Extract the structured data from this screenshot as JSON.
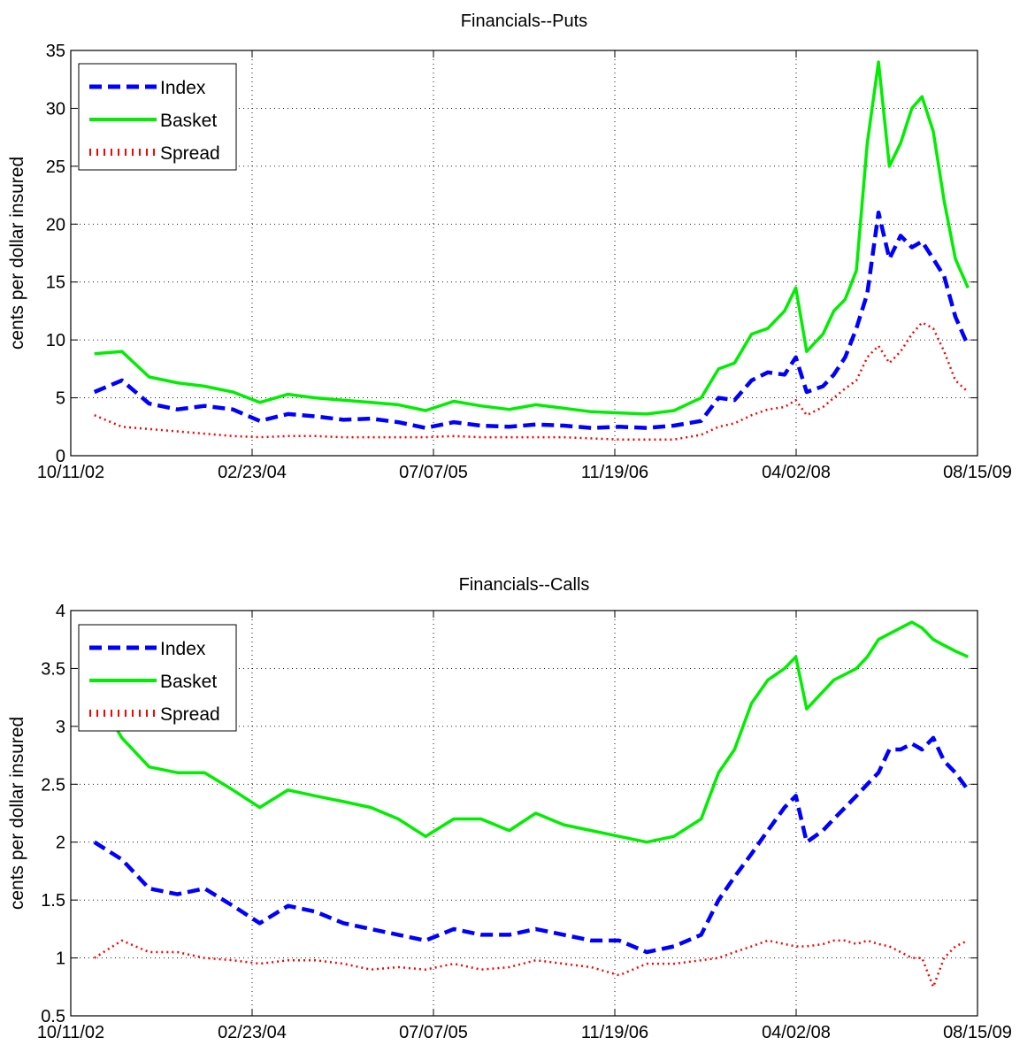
{
  "chart_data": [
    {
      "type": "line",
      "title": "Financials--Puts",
      "xlabel": "",
      "ylabel": "cents per dollar insured",
      "xlim": [
        "10/11/02",
        "08/15/09"
      ],
      "ylim": [
        0,
        35
      ],
      "x_ticks": [
        "10/11/02",
        "02/23/04",
        "07/07/05",
        "11/19/06",
        "04/02/08",
        "08/15/09"
      ],
      "y_ticks": [
        "0",
        "5",
        "10",
        "15",
        "20",
        "25",
        "30",
        "35"
      ],
      "grid": true,
      "legend_position": "top-left",
      "x": [
        "12/15/02",
        "03/01/03",
        "05/15/03",
        "08/01/03",
        "10/15/03",
        "01/01/04",
        "03/15/04",
        "06/01/04",
        "08/15/04",
        "11/01/04",
        "01/15/05",
        "04/01/05",
        "06/15/05",
        "09/01/05",
        "11/15/05",
        "02/01/06",
        "04/15/06",
        "07/01/06",
        "09/15/06",
        "12/01/06",
        "02/15/07",
        "05/01/07",
        "07/15/07",
        "09/01/07",
        "10/15/07",
        "12/01/07",
        "01/15/08",
        "03/01/08",
        "04/01/08",
        "05/01/08",
        "06/15/08",
        "07/15/08",
        "08/15/08",
        "09/15/08",
        "10/15/08",
        "11/15/08",
        "12/15/08",
        "01/15/09",
        "02/15/09",
        "03/15/09",
        "04/15/09",
        "05/15/09",
        "06/15/09",
        "07/20/09"
      ],
      "series": [
        {
          "name": "Index",
          "color": "#0000ff",
          "dash": "dashed",
          "values": [
            5.5,
            6.5,
            4.5,
            4.0,
            4.3,
            4.0,
            3.0,
            3.6,
            3.4,
            3.1,
            3.2,
            2.9,
            2.4,
            2.9,
            2.6,
            2.5,
            2.7,
            2.6,
            2.4,
            2.5,
            2.4,
            2.6,
            3.0,
            5.0,
            4.8,
            6.5,
            7.2,
            7.0,
            8.5,
            5.5,
            6.0,
            7.0,
            8.5,
            11.0,
            14.0,
            21.0,
            17.0,
            19.0,
            18.0,
            18.5,
            17.0,
            15.5,
            12.0,
            9.5
          ]
        },
        {
          "name": "Basket",
          "color": "#00ee00",
          "dash": "solid",
          "values": [
            8.8,
            9.0,
            6.8,
            6.3,
            6.0,
            5.5,
            4.6,
            5.3,
            5.0,
            4.8,
            4.6,
            4.4,
            3.9,
            4.7,
            4.3,
            4.0,
            4.4,
            4.1,
            3.8,
            3.7,
            3.6,
            3.9,
            5.0,
            7.5,
            8.0,
            10.5,
            11.0,
            12.5,
            14.5,
            9.0,
            10.5,
            12.5,
            13.5,
            16.0,
            27.0,
            34.0,
            25.0,
            27.0,
            30.0,
            31.0,
            28.0,
            22.0,
            17.0,
            14.5
          ]
        },
        {
          "name": "Spread",
          "color": "#ff0000",
          "dash": "dotted",
          "values": [
            3.5,
            2.5,
            2.3,
            2.1,
            1.9,
            1.7,
            1.6,
            1.7,
            1.7,
            1.6,
            1.6,
            1.6,
            1.6,
            1.7,
            1.6,
            1.6,
            1.6,
            1.6,
            1.5,
            1.4,
            1.4,
            1.4,
            1.8,
            2.5,
            2.8,
            3.5,
            4.0,
            4.2,
            4.8,
            3.5,
            4.2,
            5.0,
            5.8,
            6.5,
            8.5,
            9.5,
            8.0,
            9.0,
            10.5,
            11.5,
            11.0,
            9.0,
            6.5,
            5.5
          ]
        }
      ]
    },
    {
      "type": "line",
      "title": "Financials--Calls",
      "xlabel": "",
      "ylabel": "cents per dollar insured",
      "xlim": [
        "10/11/02",
        "08/15/09"
      ],
      "ylim": [
        0.5,
        4
      ],
      "x_ticks": [
        "10/11/02",
        "02/23/04",
        "07/07/05",
        "11/19/06",
        "04/02/08",
        "08/15/09"
      ],
      "y_ticks": [
        "0.5",
        "1",
        "1.5",
        "2",
        "2.5",
        "3",
        "3.5",
        "4"
      ],
      "grid": true,
      "legend_position": "top-left",
      "x": [
        "12/15/02",
        "03/01/03",
        "05/15/03",
        "08/01/03",
        "10/15/03",
        "01/01/04",
        "03/15/04",
        "06/01/04",
        "08/15/04",
        "11/01/04",
        "01/15/05",
        "04/01/05",
        "06/15/05",
        "09/01/05",
        "11/15/05",
        "02/01/06",
        "04/15/06",
        "07/01/06",
        "09/15/06",
        "12/01/06",
        "02/15/07",
        "05/01/07",
        "07/15/07",
        "09/01/07",
        "10/15/07",
        "12/01/07",
        "01/15/08",
        "03/01/08",
        "04/01/08",
        "05/01/08",
        "06/15/08",
        "07/15/08",
        "08/15/08",
        "09/15/08",
        "10/15/08",
        "11/15/08",
        "12/15/08",
        "01/15/09",
        "02/15/09",
        "03/15/09",
        "04/15/09",
        "05/15/09",
        "06/15/09",
        "07/20/09"
      ],
      "series": [
        {
          "name": "Index",
          "color": "#0000ff",
          "dash": "dashed",
          "values": [
            2.0,
            1.85,
            1.6,
            1.55,
            1.6,
            1.45,
            1.3,
            1.45,
            1.4,
            1.3,
            1.25,
            1.2,
            1.15,
            1.25,
            1.2,
            1.2,
            1.25,
            1.2,
            1.15,
            1.15,
            1.05,
            1.1,
            1.2,
            1.5,
            1.7,
            1.9,
            2.1,
            2.3,
            2.4,
            2.0,
            2.1,
            2.2,
            2.3,
            2.4,
            2.5,
            2.6,
            2.8,
            2.8,
            2.85,
            2.8,
            2.9,
            2.7,
            2.6,
            2.45
          ]
        },
        {
          "name": "Basket",
          "color": "#00ee00",
          "dash": "solid",
          "values": [
            3.3,
            2.9,
            2.65,
            2.6,
            2.6,
            2.45,
            2.3,
            2.45,
            2.4,
            2.35,
            2.3,
            2.2,
            2.05,
            2.2,
            2.2,
            2.1,
            2.25,
            2.15,
            2.1,
            2.05,
            2.0,
            2.05,
            2.2,
            2.6,
            2.8,
            3.2,
            3.4,
            3.5,
            3.6,
            3.15,
            3.3,
            3.4,
            3.45,
            3.5,
            3.6,
            3.75,
            3.8,
            3.85,
            3.9,
            3.85,
            3.75,
            3.7,
            3.65,
            3.6
          ]
        },
        {
          "name": "Spread",
          "color": "#ff0000",
          "dash": "dotted",
          "values": [
            1.0,
            1.15,
            1.05,
            1.05,
            1.0,
            0.98,
            0.95,
            0.98,
            0.98,
            0.95,
            0.9,
            0.92,
            0.9,
            0.95,
            0.9,
            0.92,
            0.98,
            0.95,
            0.92,
            0.85,
            0.95,
            0.95,
            0.98,
            1.0,
            1.05,
            1.1,
            1.15,
            1.12,
            1.1,
            1.1,
            1.12,
            1.15,
            1.15,
            1.12,
            1.15,
            1.12,
            1.1,
            1.05,
            1.0,
            1.0,
            0.75,
            1.0,
            1.1,
            1.15
          ]
        }
      ]
    }
  ]
}
